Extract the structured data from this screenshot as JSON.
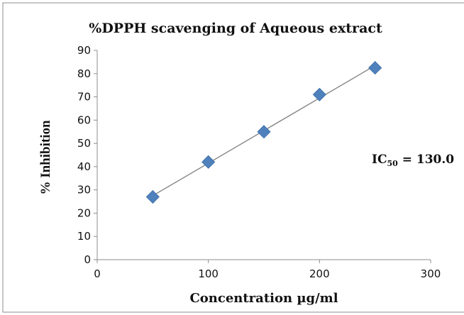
{
  "chart_data": {
    "type": "scatter",
    "title": "%DPPH scavenging of Aqueous extract",
    "xlabel": "Concentration µg/ml",
    "ylabel": "% Inhibition",
    "xlim": [
      0,
      300
    ],
    "ylim": [
      0,
      90
    ],
    "x_ticks": [
      "0",
      "100",
      "200",
      "300"
    ],
    "y_ticks": [
      "0",
      "10",
      "20",
      "30",
      "40",
      "50",
      "60",
      "70",
      "80",
      "90"
    ],
    "grid": false,
    "legend": "none",
    "series": [
      {
        "x": [
          50,
          100,
          150,
          200,
          250
        ],
        "y": [
          27,
          42,
          55,
          71,
          82.5
        ],
        "marker": "diamond",
        "color": "#4f81bd"
      }
    ],
    "trendline": {
      "type": "linear",
      "x_start": 50,
      "y_start": 27.5,
      "x_end": 250,
      "y_end": 83.5,
      "color": "#7f7f7f"
    },
    "annotation": {
      "prefix": "IC",
      "subscript": "50",
      "suffix": " = 130.0"
    }
  }
}
